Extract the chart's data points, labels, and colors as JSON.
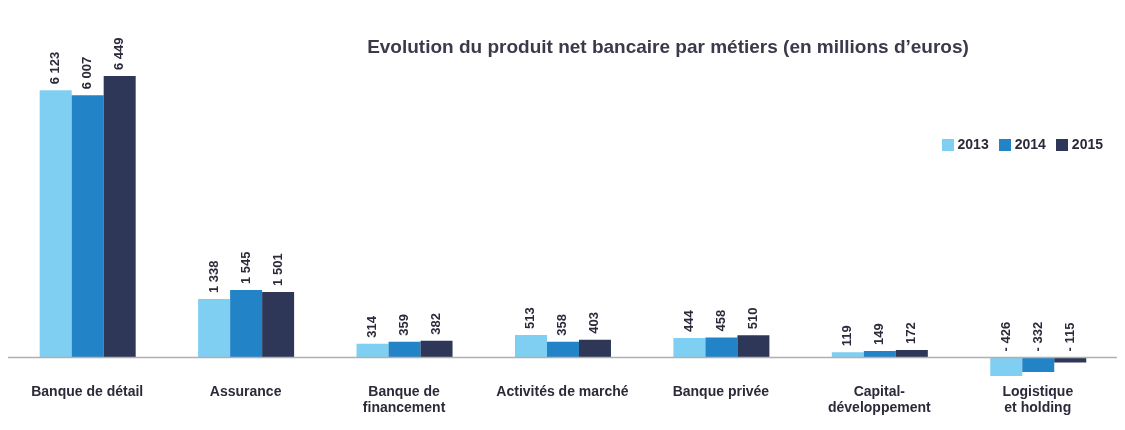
{
  "chart_data": {
    "type": "bar",
    "title": "Evolution du produit net bancaire par métiers (en millions d’euros)",
    "categories": [
      "Banque de détail",
      "Assurance",
      "Banque de financement",
      "Activités de marché",
      "Banque privée",
      "Capital-développement",
      "Logistique et holding"
    ],
    "series": [
      {
        "name": "2013",
        "color": "#7fcff3",
        "values": [
          6123,
          1338,
          314,
          513,
          444,
          119,
          -426
        ],
        "value_labels": [
          "6 123",
          "1 338",
          "314",
          "513",
          "444",
          "119",
          "- 426"
        ]
      },
      {
        "name": "2014",
        "color": "#2383c7",
        "values": [
          6007,
          1545,
          359,
          358,
          458,
          149,
          -332
        ],
        "value_labels": [
          "6 007",
          "1 545",
          "359",
          "358",
          "458",
          "149",
          "- 332"
        ]
      },
      {
        "name": "2015",
        "color": "#2e3757",
        "values": [
          6449,
          1501,
          382,
          403,
          510,
          172,
          -115
        ],
        "value_labels": [
          "6 449",
          "1 501",
          "382",
          "403",
          "510",
          "172",
          "- 115"
        ]
      }
    ],
    "legend": "top right",
    "tick_labels": "x"
  }
}
